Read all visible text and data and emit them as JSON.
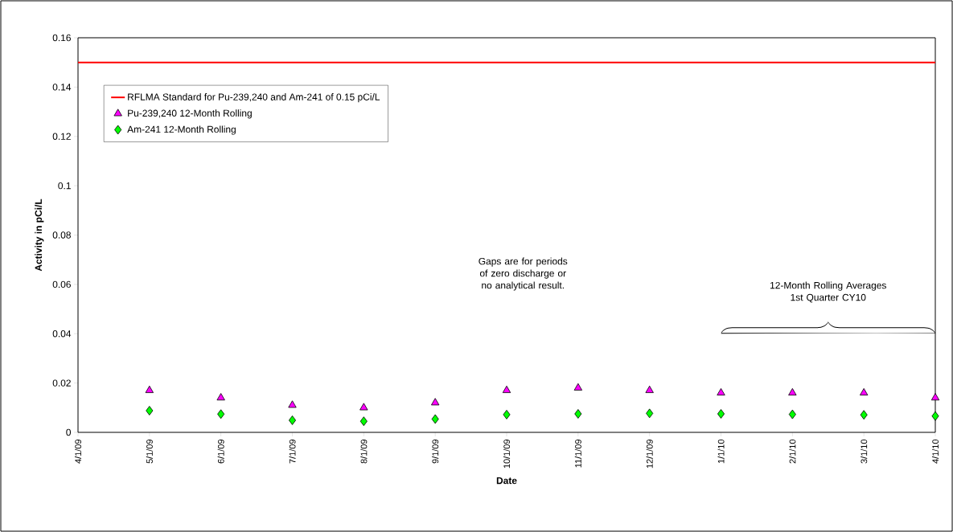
{
  "chart_data": {
    "type": "scatter",
    "xlabel": "Date",
    "ylabel": "Activity in pCi/L",
    "categories": [
      "4/1/09",
      "5/1/09",
      "6/1/09",
      "7/1/09",
      "8/1/09",
      "9/1/09",
      "10/1/09",
      "11/1/09",
      "12/1/09",
      "1/1/10",
      "2/1/10",
      "3/1/10",
      "4/1/10"
    ],
    "series": [
      {
        "name": "Pu-239,240 12-Month Rolling",
        "color": "#ff00ff",
        "marker": "triangle",
        "values": [
          null,
          0.017,
          0.014,
          0.011,
          0.01,
          0.012,
          0.017,
          0.018,
          0.017,
          0.016,
          0.016,
          0.016,
          0.014
        ]
      },
      {
        "name": "Am-241 12-Month Rolling",
        "color": "#00ff00",
        "marker": "diamond",
        "values": [
          null,
          0.0088,
          0.0074,
          0.0049,
          0.0045,
          0.0054,
          0.0072,
          0.0075,
          0.0077,
          0.0075,
          0.0073,
          0.0071,
          0.0066
        ]
      }
    ],
    "ref_lines": [
      {
        "axis": "y",
        "value": 0.15,
        "label": "RFLMA Standard for Pu-239,240 and Am-241 of 0.15 pCi/L",
        "color": "#ff0000",
        "line_style": "solid"
      }
    ],
    "ylim": [
      0,
      0.16
    ],
    "yticks": [
      0,
      0.02,
      0.04,
      0.06,
      0.08,
      0.1,
      0.12,
      0.14,
      0.16
    ],
    "legend": "top left",
    "annotations": [
      "Gaps are for periods of zero discharge or no analytical result.",
      "12-Month Rolling Averages 1st Quarter CY10"
    ]
  }
}
